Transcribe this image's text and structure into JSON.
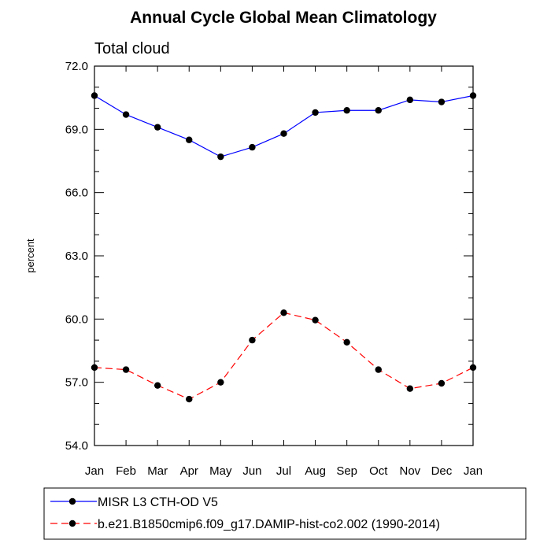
{
  "chart_data": {
    "type": "line",
    "title": "Annual Cycle Global Mean Climatology",
    "subtitle": "Total cloud",
    "ylabel": "percent",
    "xlabel": "",
    "categories": [
      "Jan",
      "Feb",
      "Mar",
      "Apr",
      "May",
      "Jun",
      "Jul",
      "Aug",
      "Sep",
      "Oct",
      "Nov",
      "Dec",
      "Jan"
    ],
    "ylim": [
      54.0,
      72.0
    ],
    "yticks": [
      "54.0",
      "57.0",
      "60.0",
      "63.0",
      "66.0",
      "69.0",
      "72.0"
    ],
    "grid": false,
    "legend_position": "bottom",
    "series": [
      {
        "name": "MISR L3 CTH-OD V5",
        "color": "#0000ff",
        "dash": "solid",
        "values": [
          70.6,
          69.7,
          69.1,
          68.5,
          67.7,
          68.15,
          68.8,
          69.8,
          69.9,
          69.9,
          70.4,
          70.3,
          70.6
        ]
      },
      {
        "name": "b.e21.B1850cmip6.f09_g17.DAMIP-hist-co2.002 (1990-2014)",
        "color": "#ff0000",
        "dash": "dashed",
        "values": [
          57.7,
          57.6,
          56.85,
          56.2,
          57.0,
          59.0,
          60.3,
          59.95,
          58.9,
          57.6,
          56.7,
          56.95,
          57.7
        ]
      }
    ]
  }
}
